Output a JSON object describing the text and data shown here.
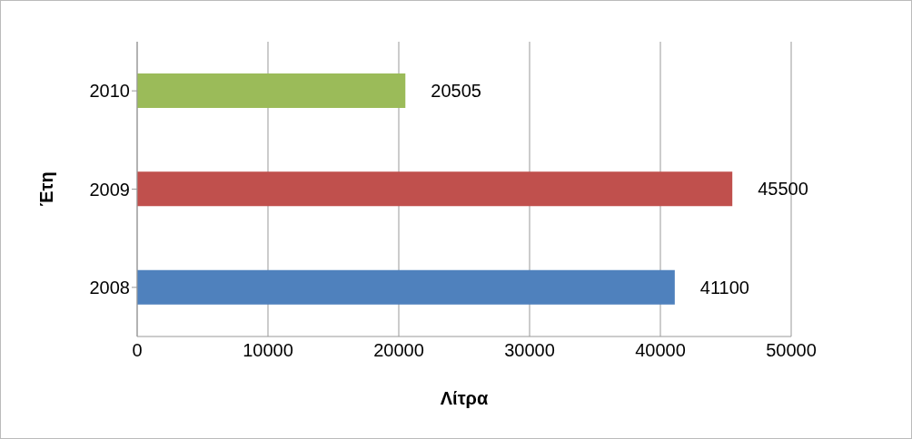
{
  "chart_data": {
    "type": "bar",
    "orientation": "horizontal",
    "categories": [
      "2010",
      "2009",
      "2008"
    ],
    "values": [
      20505,
      45500,
      41100
    ],
    "colors": [
      "#9bbb59",
      "#c0504d",
      "#4f81bd"
    ],
    "xlim": [
      0,
      50000
    ],
    "xticks": [
      0,
      10000,
      20000,
      30000,
      40000,
      50000
    ],
    "xlabel": "Λίτρα",
    "ylabel": "Έτη",
    "grid": "x",
    "data_labels": true
  }
}
